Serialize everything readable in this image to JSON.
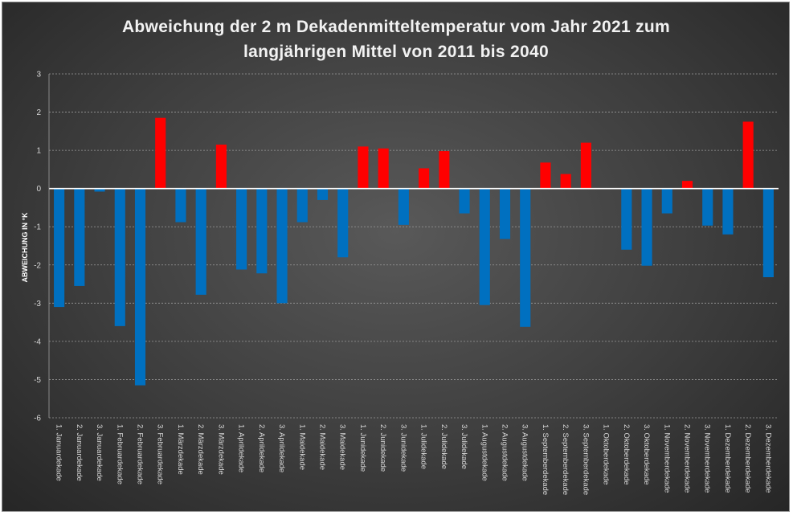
{
  "chart_data": {
    "type": "bar",
    "title_lines": [
      "Abweichung der 2 m Dekadenmitteltemperatur  vom Jahr 2021 zum",
      "langjährigen Mittel von 2011 bis 2040"
    ],
    "xlabel": "",
    "ylabel": "ABWEICHUNG IN °K",
    "ylim": [
      -6,
      3
    ],
    "yticks": [
      3,
      2,
      1,
      0,
      -1,
      -2,
      -3,
      -4,
      -5,
      -6
    ],
    "grid": true,
    "legend": "none",
    "colors": {
      "positive": "#ff0000",
      "negative": "#0070c0"
    },
    "categories": [
      "1. Januardekade",
      "2. Januardekade",
      "3. Januardekade",
      "1. Februardekade",
      "2. Februardekade",
      "3. Februardekade",
      "1. Märzdekade",
      "2. Märzdekade",
      "3. Märzdekade",
      "1. Aprildekade",
      "2. Aprildekade",
      "3. Aprildekade",
      "1. Maidekade",
      "2. Maidekade",
      "3. Maidekade",
      "1. Junidekade",
      "2. Junidekade",
      "3. Junidekade",
      "1. Julidekade",
      "2. Julidekade",
      "3. Julidekade",
      "1. Augustdekade",
      "2. Augustdekade",
      "3. Augustdekade",
      "1. Septemberdekade",
      "2. Septemberdekade",
      "3. Septemberdekade",
      "1. Oktoberdekade",
      "2. Oktoberdekade",
      "3. Oktoberdekade",
      "1. Novemberdekade",
      "2. Novemberdekade",
      "3. Novemberdekade",
      "1. Dezemberdekade",
      "2. Dezemberdekade",
      "3. Dezemberdekade"
    ],
    "values": [
      -3.1,
      -2.55,
      -0.08,
      -3.6,
      -5.15,
      1.85,
      -0.88,
      -2.78,
      1.15,
      -2.12,
      -2.22,
      -3.0,
      -0.88,
      -0.3,
      -1.8,
      1.1,
      1.05,
      -0.95,
      0.53,
      0.98,
      -0.65,
      -3.05,
      -1.32,
      -3.62,
      0.68,
      0.38,
      1.2,
      0.0,
      -1.6,
      -2.02,
      -0.65,
      0.2,
      -0.97,
      -1.2,
      1.75,
      -2.32
    ]
  }
}
